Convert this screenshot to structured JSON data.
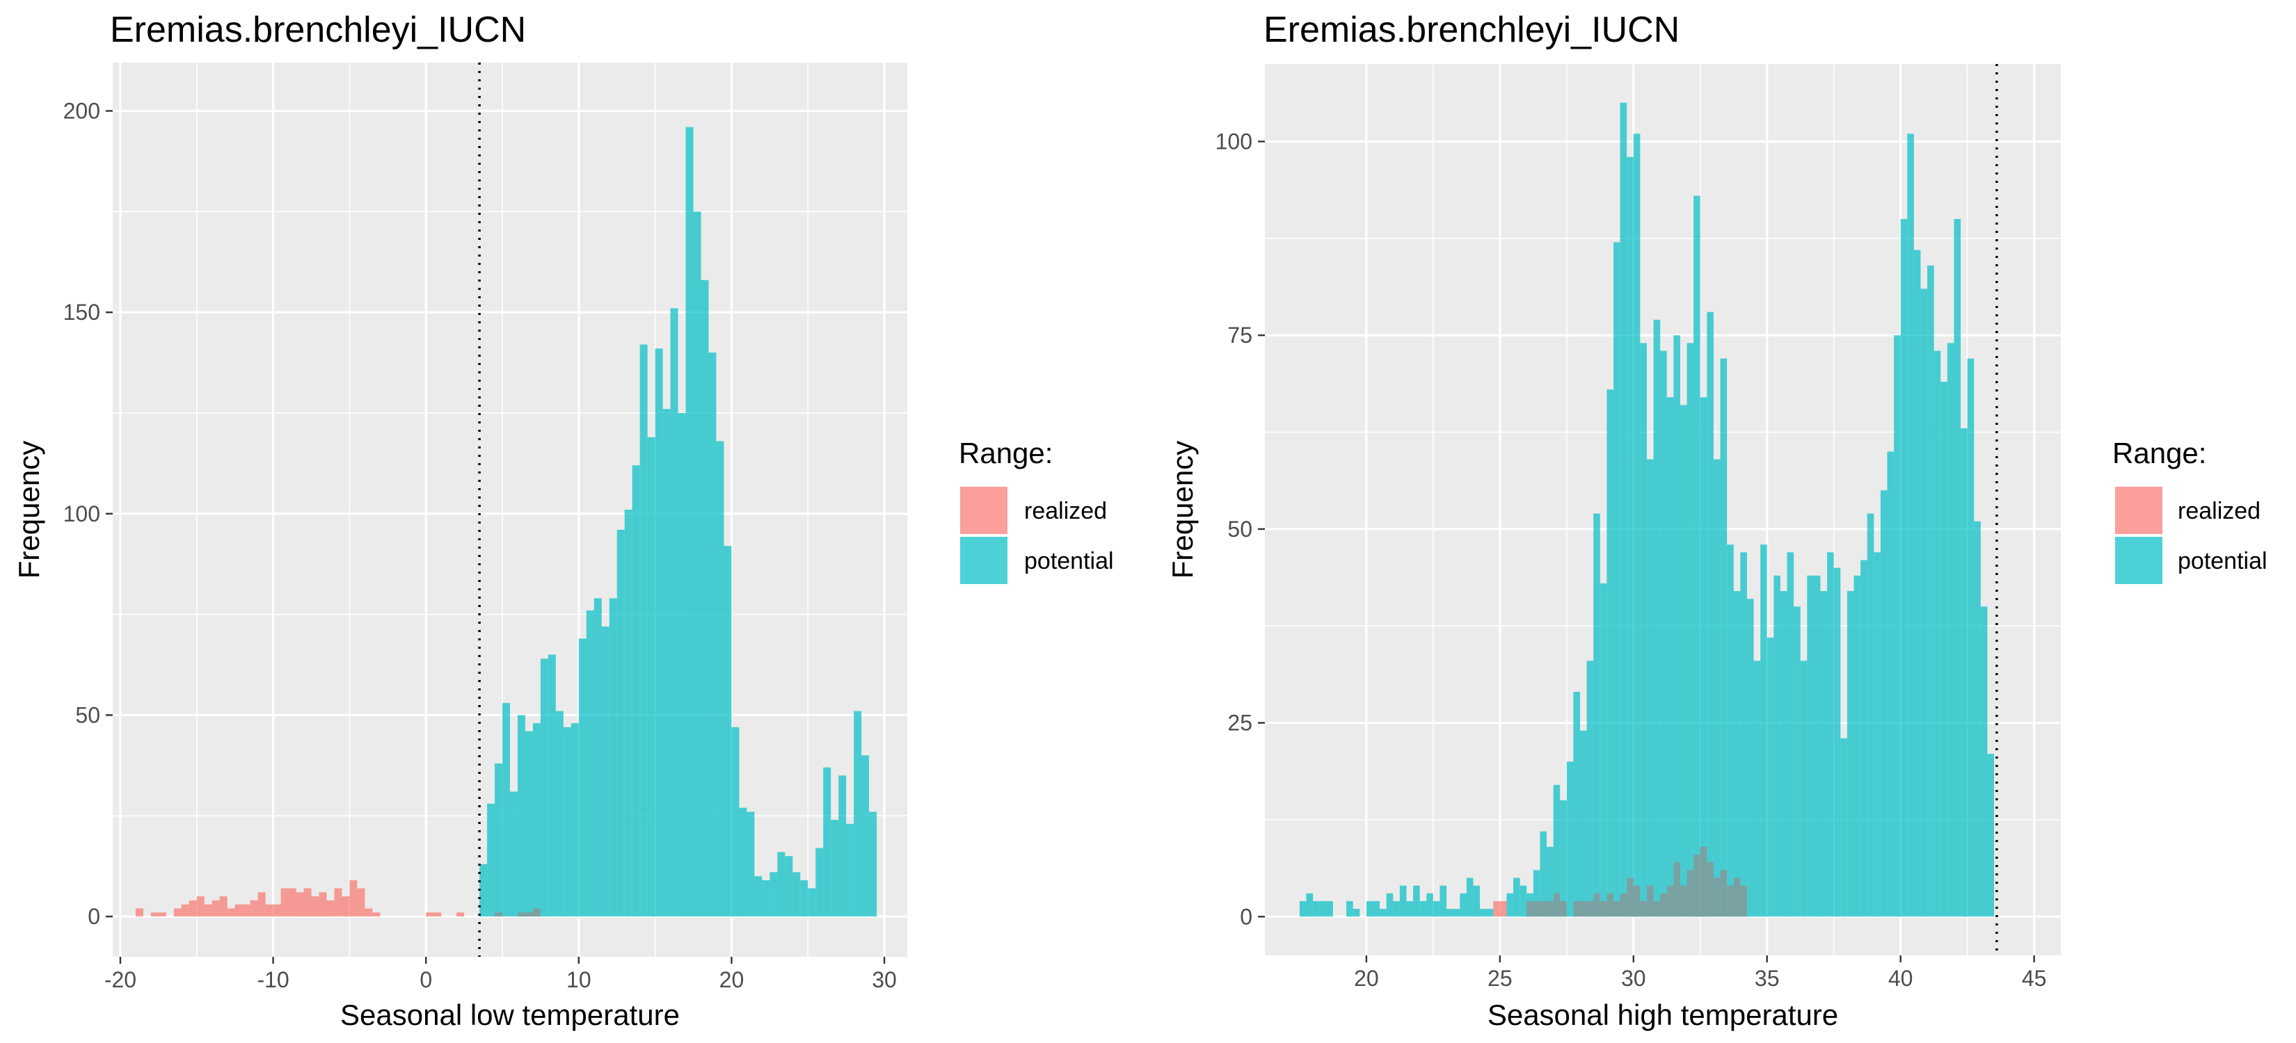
{
  "chart_data": [
    {
      "type": "bar",
      "subtype": "histogram",
      "title": "Eremias.brenchleyi_IUCN",
      "xlabel": "Seasonal low temperature",
      "ylabel": "Frequency",
      "xlim": [
        -20.5,
        31.5
      ],
      "ylim": [
        -10,
        212
      ],
      "x_ticks": [
        -20,
        -10,
        0,
        10,
        20,
        30
      ],
      "x_tick_labels": [
        "-20",
        "-10",
        "0",
        "10",
        "20",
        "30"
      ],
      "y_ticks": [
        0,
        50,
        100,
        150,
        200
      ],
      "y_tick_labels": [
        "0",
        "50",
        "100",
        "150",
        "200"
      ],
      "vline_x": 3.5,
      "bin_width": 0.5,
      "series": [
        {
          "name": "realized",
          "color": "#F8766D",
          "bins": [
            {
              "x": -19.0,
              "y": 2
            },
            {
              "x": -18.0,
              "y": 1
            },
            {
              "x": -17.5,
              "y": 1
            },
            {
              "x": -16.5,
              "y": 2
            },
            {
              "x": -16.0,
              "y": 3
            },
            {
              "x": -15.5,
              "y": 4
            },
            {
              "x": -15.0,
              "y": 5
            },
            {
              "x": -14.5,
              "y": 3
            },
            {
              "x": -14.0,
              "y": 4
            },
            {
              "x": -13.5,
              "y": 5
            },
            {
              "x": -13.0,
              "y": 2
            },
            {
              "x": -12.5,
              "y": 3
            },
            {
              "x": -12.0,
              "y": 3
            },
            {
              "x": -11.5,
              "y": 4
            },
            {
              "x": -11.0,
              "y": 6
            },
            {
              "x": -10.5,
              "y": 3
            },
            {
              "x": -10.0,
              "y": 3
            },
            {
              "x": -9.5,
              "y": 7
            },
            {
              "x": -9.0,
              "y": 7
            },
            {
              "x": -8.5,
              "y": 6
            },
            {
              "x": -8.0,
              "y": 7
            },
            {
              "x": -7.5,
              "y": 5
            },
            {
              "x": -7.0,
              "y": 6
            },
            {
              "x": -6.5,
              "y": 4
            },
            {
              "x": -6.0,
              "y": 7
            },
            {
              "x": -5.5,
              "y": 5
            },
            {
              "x": -5.0,
              "y": 9
            },
            {
              "x": -4.5,
              "y": 7
            },
            {
              "x": -4.0,
              "y": 2
            },
            {
              "x": -3.5,
              "y": 1
            },
            {
              "x": 0.0,
              "y": 1
            },
            {
              "x": 0.5,
              "y": 1
            },
            {
              "x": 2.0,
              "y": 1
            }
          ]
        },
        {
          "name": "potential",
          "color": "#00BFC4",
          "bins": [
            {
              "x": 3.5,
              "y": 13
            },
            {
              "x": 4.0,
              "y": 28
            },
            {
              "x": 4.5,
              "y": 38
            },
            {
              "x": 5.0,
              "y": 53
            },
            {
              "x": 5.5,
              "y": 31
            },
            {
              "x": 6.0,
              "y": 50
            },
            {
              "x": 6.5,
              "y": 46
            },
            {
              "x": 7.0,
              "y": 48
            },
            {
              "x": 7.5,
              "y": 64
            },
            {
              "x": 8.0,
              "y": 65
            },
            {
              "x": 8.5,
              "y": 51
            },
            {
              "x": 9.0,
              "y": 47
            },
            {
              "x": 9.5,
              "y": 48
            },
            {
              "x": 10.0,
              "y": 69
            },
            {
              "x": 10.5,
              "y": 76
            },
            {
              "x": 11.0,
              "y": 79
            },
            {
              "x": 11.5,
              "y": 72
            },
            {
              "x": 12.0,
              "y": 79
            },
            {
              "x": 12.5,
              "y": 96
            },
            {
              "x": 13.0,
              "y": 101
            },
            {
              "x": 13.5,
              "y": 112
            },
            {
              "x": 14.0,
              "y": 142
            },
            {
              "x": 14.5,
              "y": 119
            },
            {
              "x": 15.0,
              "y": 141
            },
            {
              "x": 15.5,
              "y": 126
            },
            {
              "x": 16.0,
              "y": 151
            },
            {
              "x": 16.5,
              "y": 125
            },
            {
              "x": 17.0,
              "y": 196
            },
            {
              "x": 17.5,
              "y": 175
            },
            {
              "x": 18.0,
              "y": 158
            },
            {
              "x": 18.5,
              "y": 140
            },
            {
              "x": 19.0,
              "y": 118
            },
            {
              "x": 19.5,
              "y": 92
            },
            {
              "x": 20.0,
              "y": 47
            },
            {
              "x": 20.5,
              "y": 27
            },
            {
              "x": 21.0,
              "y": 26
            },
            {
              "x": 21.5,
              "y": 10
            },
            {
              "x": 22.0,
              "y": 9
            },
            {
              "x": 22.5,
              "y": 11
            },
            {
              "x": 23.0,
              "y": 16
            },
            {
              "x": 23.5,
              "y": 15
            },
            {
              "x": 24.0,
              "y": 11
            },
            {
              "x": 24.5,
              "y": 9
            },
            {
              "x": 25.0,
              "y": 7
            },
            {
              "x": 25.5,
              "y": 17
            },
            {
              "x": 26.0,
              "y": 37
            },
            {
              "x": 26.5,
              "y": 24
            },
            {
              "x": 27.0,
              "y": 35
            },
            {
              "x": 27.5,
              "y": 23
            },
            {
              "x": 28.0,
              "y": 51
            },
            {
              "x": 28.5,
              "y": 40
            },
            {
              "x": 29.0,
              "y": 26
            }
          ]
        },
        {
          "name": "overlap",
          "color": "#7f9c9c",
          "bins": [
            {
              "x": 4.5,
              "y": 1
            },
            {
              "x": 6.0,
              "y": 1
            },
            {
              "x": 6.5,
              "y": 1
            },
            {
              "x": 7.0,
              "y": 2
            }
          ]
        }
      ]
    },
    {
      "type": "bar",
      "subtype": "histogram",
      "title": "Eremias.brenchleyi_IUCN",
      "xlabel": "Seasonal high temperature",
      "ylabel": "Frequency",
      "xlim": [
        16.2,
        46.0
      ],
      "ylim": [
        -5,
        110
      ],
      "x_ticks": [
        20,
        25,
        30,
        35,
        40,
        45
      ],
      "x_tick_labels": [
        "20",
        "25",
        "30",
        "35",
        "40",
        "45"
      ],
      "y_ticks": [
        0,
        25,
        50,
        75,
        100
      ],
      "y_tick_labels": [
        "0",
        "25",
        "50",
        "75",
        "100"
      ],
      "vline_x": 43.6,
      "bin_width": 0.25,
      "series": [
        {
          "name": "realized",
          "color": "#F8766D",
          "bins": [
            {
              "x": 24.75,
              "y": 2
            },
            {
              "x": 25.0,
              "y": 2
            }
          ]
        },
        {
          "name": "potential",
          "color": "#00BFC4",
          "bins": [
            {
              "x": 17.5,
              "y": 2
            },
            {
              "x": 17.75,
              "y": 3
            },
            {
              "x": 18.0,
              "y": 2
            },
            {
              "x": 18.25,
              "y": 2
            },
            {
              "x": 18.5,
              "y": 2
            },
            {
              "x": 19.25,
              "y": 2
            },
            {
              "x": 19.5,
              "y": 1
            },
            {
              "x": 20.0,
              "y": 2
            },
            {
              "x": 20.25,
              "y": 2
            },
            {
              "x": 20.5,
              "y": 1
            },
            {
              "x": 20.75,
              "y": 3
            },
            {
              "x": 21.0,
              "y": 2
            },
            {
              "x": 21.25,
              "y": 4
            },
            {
              "x": 21.5,
              "y": 2
            },
            {
              "x": 21.75,
              "y": 4
            },
            {
              "x": 22.0,
              "y": 2
            },
            {
              "x": 22.25,
              "y": 3
            },
            {
              "x": 22.5,
              "y": 2
            },
            {
              "x": 22.75,
              "y": 4
            },
            {
              "x": 23.0,
              "y": 1
            },
            {
              "x": 23.25,
              "y": 1
            },
            {
              "x": 23.5,
              "y": 3
            },
            {
              "x": 23.75,
              "y": 5
            },
            {
              "x": 24.0,
              "y": 4
            },
            {
              "x": 24.25,
              "y": 1
            },
            {
              "x": 24.5,
              "y": 1
            },
            {
              "x": 25.25,
              "y": 3
            },
            {
              "x": 25.5,
              "y": 5
            },
            {
              "x": 25.75,
              "y": 4
            },
            {
              "x": 26.0,
              "y": 3
            },
            {
              "x": 26.25,
              "y": 6
            },
            {
              "x": 26.5,
              "y": 11
            },
            {
              "x": 26.75,
              "y": 9
            },
            {
              "x": 27.0,
              "y": 17
            },
            {
              "x": 27.25,
              "y": 15
            },
            {
              "x": 27.5,
              "y": 20
            },
            {
              "x": 27.75,
              "y": 29
            },
            {
              "x": 28.0,
              "y": 24
            },
            {
              "x": 28.25,
              "y": 33
            },
            {
              "x": 28.5,
              "y": 52
            },
            {
              "x": 28.75,
              "y": 43
            },
            {
              "x": 29.0,
              "y": 68
            },
            {
              "x": 29.25,
              "y": 87
            },
            {
              "x": 29.5,
              "y": 105
            },
            {
              "x": 29.75,
              "y": 98
            },
            {
              "x": 30.0,
              "y": 101
            },
            {
              "x": 30.25,
              "y": 74
            },
            {
              "x": 30.5,
              "y": 59
            },
            {
              "x": 30.75,
              "y": 77
            },
            {
              "x": 31.0,
              "y": 73
            },
            {
              "x": 31.25,
              "y": 67
            },
            {
              "x": 31.5,
              "y": 75
            },
            {
              "x": 31.75,
              "y": 66
            },
            {
              "x": 32.0,
              "y": 74
            },
            {
              "x": 32.25,
              "y": 93
            },
            {
              "x": 32.5,
              "y": 67
            },
            {
              "x": 32.75,
              "y": 78
            },
            {
              "x": 33.0,
              "y": 59
            },
            {
              "x": 33.25,
              "y": 72
            },
            {
              "x": 33.5,
              "y": 48
            },
            {
              "x": 33.75,
              "y": 42
            },
            {
              "x": 34.0,
              "y": 47
            },
            {
              "x": 34.25,
              "y": 41
            },
            {
              "x": 34.5,
              "y": 33
            },
            {
              "x": 34.75,
              "y": 48
            },
            {
              "x": 35.0,
              "y": 36
            },
            {
              "x": 35.25,
              "y": 44
            },
            {
              "x": 35.5,
              "y": 42
            },
            {
              "x": 35.75,
              "y": 47
            },
            {
              "x": 36.0,
              "y": 40
            },
            {
              "x": 36.25,
              "y": 33
            },
            {
              "x": 36.5,
              "y": 44
            },
            {
              "x": 36.75,
              "y": 44
            },
            {
              "x": 37.0,
              "y": 42
            },
            {
              "x": 37.25,
              "y": 47
            },
            {
              "x": 37.5,
              "y": 45
            },
            {
              "x": 37.75,
              "y": 23
            },
            {
              "x": 38.0,
              "y": 42
            },
            {
              "x": 38.25,
              "y": 44
            },
            {
              "x": 38.5,
              "y": 46
            },
            {
              "x": 38.75,
              "y": 52
            },
            {
              "x": 39.0,
              "y": 47
            },
            {
              "x": 39.25,
              "y": 55
            },
            {
              "x": 39.5,
              "y": 60
            },
            {
              "x": 39.75,
              "y": 75
            },
            {
              "x": 40.0,
              "y": 90
            },
            {
              "x": 40.25,
              "y": 101
            },
            {
              "x": 40.5,
              "y": 86
            },
            {
              "x": 40.75,
              "y": 81
            },
            {
              "x": 41.0,
              "y": 84
            },
            {
              "x": 41.25,
              "y": 73
            },
            {
              "x": 41.5,
              "y": 69
            },
            {
              "x": 41.75,
              "y": 74
            },
            {
              "x": 42.0,
              "y": 90
            },
            {
              "x": 42.25,
              "y": 63
            },
            {
              "x": 42.5,
              "y": 72
            },
            {
              "x": 42.75,
              "y": 51
            },
            {
              "x": 43.0,
              "y": 40
            },
            {
              "x": 43.25,
              "y": 21
            }
          ]
        },
        {
          "name": "overlap",
          "color": "#7f9c9c",
          "bins": [
            {
              "x": 26.0,
              "y": 2
            },
            {
              "x": 26.25,
              "y": 2
            },
            {
              "x": 26.5,
              "y": 2
            },
            {
              "x": 26.75,
              "y": 2
            },
            {
              "x": 27.0,
              "y": 3
            },
            {
              "x": 27.25,
              "y": 2
            },
            {
              "x": 27.75,
              "y": 2
            },
            {
              "x": 28.0,
              "y": 2
            },
            {
              "x": 28.25,
              "y": 2
            },
            {
              "x": 28.5,
              "y": 3
            },
            {
              "x": 28.75,
              "y": 2
            },
            {
              "x": 29.0,
              "y": 3
            },
            {
              "x": 29.25,
              "y": 2
            },
            {
              "x": 29.5,
              "y": 3
            },
            {
              "x": 29.75,
              "y": 5
            },
            {
              "x": 30.0,
              "y": 4
            },
            {
              "x": 30.25,
              "y": 2
            },
            {
              "x": 30.5,
              "y": 4
            },
            {
              "x": 30.75,
              "y": 2
            },
            {
              "x": 31.0,
              "y": 3
            },
            {
              "x": 31.25,
              "y": 4
            },
            {
              "x": 31.5,
              "y": 7
            },
            {
              "x": 31.75,
              "y": 4
            },
            {
              "x": 32.0,
              "y": 6
            },
            {
              "x": 32.25,
              "y": 8
            },
            {
              "x": 32.5,
              "y": 9
            },
            {
              "x": 32.75,
              "y": 7
            },
            {
              "x": 33.0,
              "y": 5
            },
            {
              "x": 33.25,
              "y": 6
            },
            {
              "x": 33.5,
              "y": 4
            },
            {
              "x": 33.75,
              "y": 5
            },
            {
              "x": 34.0,
              "y": 4
            }
          ]
        }
      ]
    }
  ],
  "legend": {
    "title": "Range:",
    "items": [
      {
        "label": "realized",
        "color": "#F8766D"
      },
      {
        "label": "potential",
        "color": "#00BFC4"
      }
    ]
  }
}
